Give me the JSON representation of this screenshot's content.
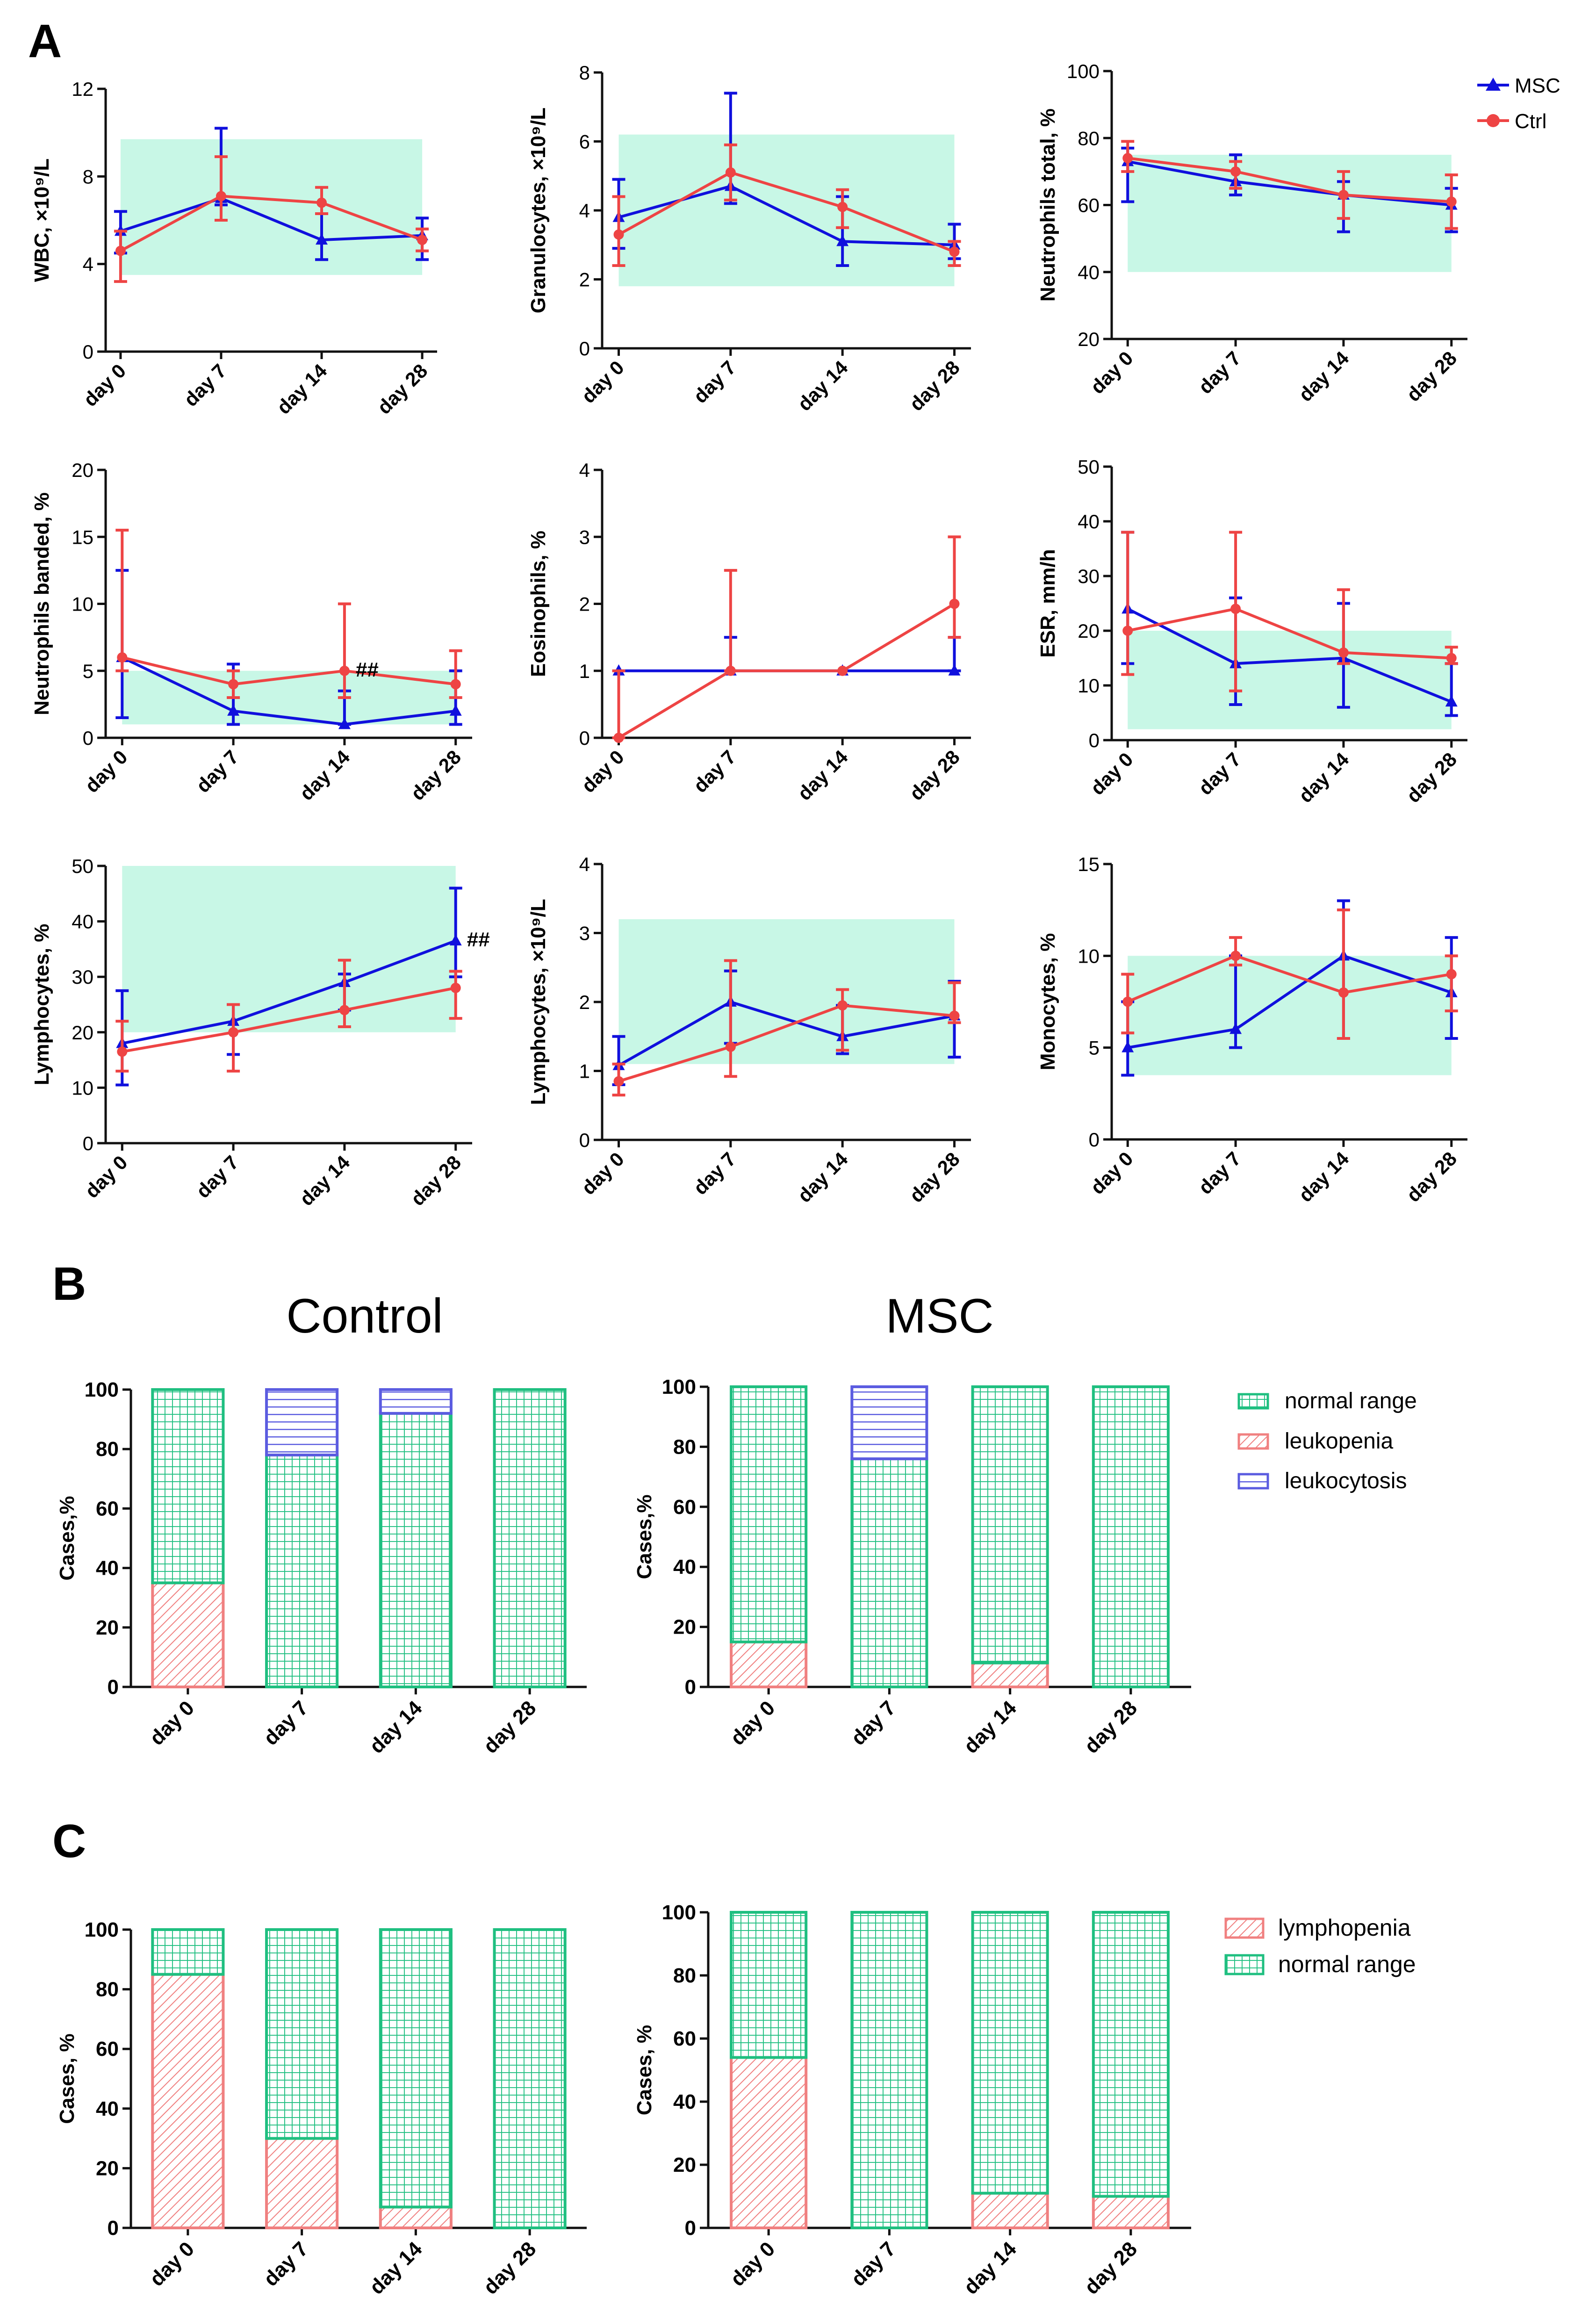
{
  "panels": {
    "a": "A",
    "b": "B",
    "c": "C"
  },
  "colors": {
    "msc": "#1010dd",
    "ctrl": "#ee4444",
    "ref_band": "#c8f7e6",
    "normal_range": "#1fbf80",
    "leukopenia": "#f08080",
    "leukocytosis": "#5b5ce0",
    "axis": "#111111"
  },
  "legend_a": {
    "msc": "MSC",
    "ctrl": "Ctrl"
  },
  "legend_b": {
    "normal": "normal range",
    "leukopenia": "leukopenia",
    "leukocytosis": "leukocytosis"
  },
  "legend_c": {
    "lymphopenia": "lymphopenia",
    "normal": "normal range"
  },
  "titles_b": {
    "control": "Control",
    "msc": "MSC"
  },
  "chart_data": [
    {
      "id": "wbc",
      "type": "line",
      "ylabel": "WBC, ×10⁹/L",
      "categories": [
        "day 0",
        "day 7",
        "day 14",
        "day 28"
      ],
      "ylim": [
        0,
        12
      ],
      "yticks": [
        0,
        4,
        8,
        12
      ],
      "ref_range": [
        3.5,
        9.7
      ],
      "series": [
        {
          "name": "MSC",
          "values": [
            5.5,
            7.0,
            5.1,
            5.3
          ],
          "err_low": [
            4.5,
            6.7,
            4.2,
            4.2
          ],
          "err_high": [
            6.4,
            10.2,
            6.3,
            6.1
          ]
        },
        {
          "name": "Ctrl",
          "values": [
            4.6,
            7.1,
            6.8,
            5.1
          ],
          "err_low": [
            3.2,
            6.0,
            6.3,
            4.6
          ],
          "err_high": [
            5.5,
            8.9,
            7.5,
            5.6
          ]
        }
      ]
    },
    {
      "id": "granulocytes",
      "type": "line",
      "ylabel": "Granulocytes, ×10⁹/L",
      "categories": [
        "day 0",
        "day 7",
        "day 14",
        "day 28"
      ],
      "ylim": [
        0,
        8
      ],
      "yticks": [
        0,
        2,
        4,
        6,
        8
      ],
      "ref_range": [
        1.8,
        6.2
      ],
      "series": [
        {
          "name": "MSC",
          "values": [
            3.8,
            4.7,
            3.1,
            3.0
          ],
          "err_low": [
            2.9,
            4.2,
            2.4,
            2.6
          ],
          "err_high": [
            4.9,
            7.4,
            4.4,
            3.6
          ]
        },
        {
          "name": "Ctrl",
          "values": [
            3.3,
            5.1,
            4.1,
            2.8
          ],
          "err_low": [
            2.4,
            4.3,
            3.5,
            2.4
          ],
          "err_high": [
            4.4,
            5.9,
            4.6,
            3.1
          ]
        }
      ]
    },
    {
      "id": "neutrophils_total",
      "type": "line",
      "ylabel": "Neutrophils total, %",
      "categories": [
        "day 0",
        "day 7",
        "day 14",
        "day 28"
      ],
      "ylim": [
        20,
        100
      ],
      "yticks": [
        20,
        40,
        60,
        80,
        100
      ],
      "ref_range": [
        40,
        75
      ],
      "series": [
        {
          "name": "MSC",
          "values": [
            73,
            67,
            63,
            60
          ],
          "err_low": [
            61,
            63,
            52,
            52
          ],
          "err_high": [
            77,
            75,
            67,
            65
          ]
        },
        {
          "name": "Ctrl",
          "values": [
            74,
            70,
            63,
            61
          ],
          "err_low": [
            70,
            65,
            56,
            53
          ],
          "err_high": [
            79,
            73,
            70,
            69
          ]
        }
      ]
    },
    {
      "id": "neutrophils_banded",
      "type": "line",
      "ylabel": "Neutrophils banded, %",
      "categories": [
        "day 0",
        "day 7",
        "day 14",
        "day 28"
      ],
      "ylim": [
        0,
        20
      ],
      "yticks": [
        0,
        5,
        10,
        15,
        20
      ],
      "ref_range": [
        1,
        5
      ],
      "annotation": {
        "category": 2,
        "text": "##"
      },
      "series": [
        {
          "name": "MSC",
          "values": [
            6,
            2,
            1,
            2
          ],
          "err_low": [
            1.5,
            1,
            1,
            1
          ],
          "err_high": [
            12.5,
            5.5,
            3.5,
            5
          ]
        },
        {
          "name": "Ctrl",
          "values": [
            6,
            4,
            5,
            4
          ],
          "err_low": [
            5,
            3,
            3,
            3
          ],
          "err_high": [
            15.5,
            5,
            10,
            6.5
          ]
        }
      ]
    },
    {
      "id": "eosinophils",
      "type": "line",
      "ylabel": "Eosinophils, %",
      "categories": [
        "day 0",
        "day 7",
        "day 14",
        "day 28"
      ],
      "ylim": [
        0,
        4
      ],
      "yticks": [
        0,
        1,
        2,
        3,
        4
      ],
      "ref_range": null,
      "series": [
        {
          "name": "MSC",
          "values": [
            1,
            1,
            1,
            1
          ],
          "err_low": [
            1,
            1,
            1,
            1
          ],
          "err_high": [
            1,
            1.5,
            1,
            1.5
          ]
        },
        {
          "name": "Ctrl",
          "values": [
            0,
            1,
            1,
            2
          ],
          "err_low": [
            0,
            1,
            1,
            1.5
          ],
          "err_high": [
            1,
            2.5,
            1,
            3
          ]
        }
      ]
    },
    {
      "id": "esr",
      "type": "line",
      "ylabel": "ESR, mm/h",
      "categories": [
        "day 0",
        "day 7",
        "day 14",
        "day 28"
      ],
      "ylim": [
        0,
        50
      ],
      "yticks": [
        0,
        10,
        20,
        30,
        40,
        50
      ],
      "ref_range": [
        2,
        20
      ],
      "series": [
        {
          "name": "MSC",
          "values": [
            24,
            14,
            15,
            7
          ],
          "err_low": [
            14,
            6.5,
            6,
            4.5
          ],
          "err_high": [
            38,
            26,
            25,
            14
          ]
        },
        {
          "name": "Ctrl",
          "values": [
            20,
            24,
            16,
            15
          ],
          "err_low": [
            12,
            9,
            14,
            14
          ],
          "err_high": [
            38,
            38,
            27.5,
            17
          ]
        }
      ]
    },
    {
      "id": "lymphocytes_pct",
      "type": "line",
      "ylabel": "Lymphocytes, %",
      "categories": [
        "day 0",
        "day 7",
        "day 14",
        "day 28"
      ],
      "ylim": [
        0,
        50
      ],
      "yticks": [
        0,
        10,
        20,
        30,
        40,
        50
      ],
      "ref_range": [
        20,
        50
      ],
      "annotation": {
        "category": 3,
        "text": "##"
      },
      "series": [
        {
          "name": "MSC",
          "values": [
            18,
            22,
            29,
            36.5
          ],
          "err_low": [
            10.5,
            16,
            24,
            30
          ],
          "err_high": [
            27.5,
            25,
            30.5,
            46
          ]
        },
        {
          "name": "Ctrl",
          "values": [
            16.5,
            20,
            24,
            28
          ],
          "err_low": [
            13,
            13,
            21,
            22.5
          ],
          "err_high": [
            22,
            25,
            33,
            31
          ]
        }
      ]
    },
    {
      "id": "lymphocytes_abs",
      "type": "line",
      "ylabel": "Lymphocytes, ×10⁹/L",
      "categories": [
        "day 0",
        "day 7",
        "day 14",
        "day 28"
      ],
      "ylim": [
        0,
        4
      ],
      "yticks": [
        0,
        1,
        2,
        3,
        4
      ],
      "ref_range": [
        1.1,
        3.2
      ],
      "series": [
        {
          "name": "MSC",
          "values": [
            1.08,
            2.0,
            1.5,
            1.8
          ],
          "err_low": [
            0.8,
            1.4,
            1.25,
            1.2
          ],
          "err_high": [
            1.5,
            2.45,
            1.95,
            2.3
          ]
        },
        {
          "name": "Ctrl",
          "values": [
            0.85,
            1.35,
            1.95,
            1.8
          ],
          "err_low": [
            0.65,
            0.92,
            1.3,
            1.7
          ],
          "err_high": [
            1.1,
            2.6,
            2.18,
            2.28
          ]
        }
      ]
    },
    {
      "id": "monocytes",
      "type": "line",
      "ylabel": "Monocytes, %",
      "categories": [
        "day 0",
        "day 7",
        "day 14",
        "day 28"
      ],
      "ylim": [
        0,
        15
      ],
      "yticks": [
        0,
        5,
        10,
        15
      ],
      "ref_range": [
        3.5,
        10
      ],
      "series": [
        {
          "name": "MSC",
          "values": [
            5,
            6,
            10,
            8
          ],
          "err_low": [
            3.5,
            5,
            5.5,
            5.5
          ],
          "err_high": [
            7.5,
            10,
            13,
            11
          ]
        },
        {
          "name": "Ctrl",
          "values": [
            7.5,
            10,
            8,
            9
          ],
          "err_low": [
            5.8,
            9.5,
            5.5,
            7
          ],
          "err_high": [
            9,
            11,
            12.5,
            10
          ]
        }
      ]
    },
    {
      "id": "wbc_cases_control",
      "type": "bar",
      "stacked": true,
      "ylabel": "Cases,%",
      "categories": [
        "day 0",
        "day 7",
        "day 14",
        "day 28"
      ],
      "ylim": [
        0,
        100
      ],
      "yticks": [
        0,
        20,
        40,
        60,
        80,
        100
      ],
      "series": [
        {
          "name": "leukopenia",
          "values": [
            35,
            0,
            0,
            0
          ]
        },
        {
          "name": "normal range",
          "values": [
            65,
            78,
            92,
            100
          ]
        },
        {
          "name": "leukocytosis",
          "values": [
            0,
            22,
            8,
            0
          ]
        }
      ]
    },
    {
      "id": "wbc_cases_msc",
      "type": "bar",
      "stacked": true,
      "ylabel": "Cases,%",
      "categories": [
        "day 0",
        "day 7",
        "day 14",
        "day 28"
      ],
      "ylim": [
        0,
        100
      ],
      "yticks": [
        0,
        20,
        40,
        60,
        80,
        100
      ],
      "series": [
        {
          "name": "leukopenia",
          "values": [
            15,
            0,
            8,
            0
          ]
        },
        {
          "name": "normal range",
          "values": [
            85,
            76,
            92,
            100
          ]
        },
        {
          "name": "leukocytosis",
          "values": [
            0,
            24,
            0,
            0
          ]
        }
      ]
    },
    {
      "id": "lymph_cases_control",
      "type": "bar",
      "stacked": true,
      "ylabel": "Cases, %",
      "categories": [
        "day 0",
        "day 7",
        "day 14",
        "day 28"
      ],
      "ylim": [
        0,
        100
      ],
      "yticks": [
        0,
        20,
        40,
        60,
        80,
        100
      ],
      "series": [
        {
          "name": "lymphopenia",
          "values": [
            85,
            30,
            7,
            0
          ]
        },
        {
          "name": "normal range",
          "values": [
            15,
            70,
            93,
            100
          ]
        }
      ]
    },
    {
      "id": "lymph_cases_msc",
      "type": "bar",
      "stacked": true,
      "ylabel": "Cases, %",
      "categories": [
        "day 0",
        "day 7",
        "day 14",
        "day 28"
      ],
      "ylim": [
        0,
        100
      ],
      "yticks": [
        0,
        20,
        40,
        60,
        80,
        100
      ],
      "series": [
        {
          "name": "lymphopenia",
          "values": [
            54,
            0,
            11,
            10
          ]
        },
        {
          "name": "normal range",
          "values": [
            46,
            100,
            89,
            90
          ]
        }
      ]
    }
  ]
}
